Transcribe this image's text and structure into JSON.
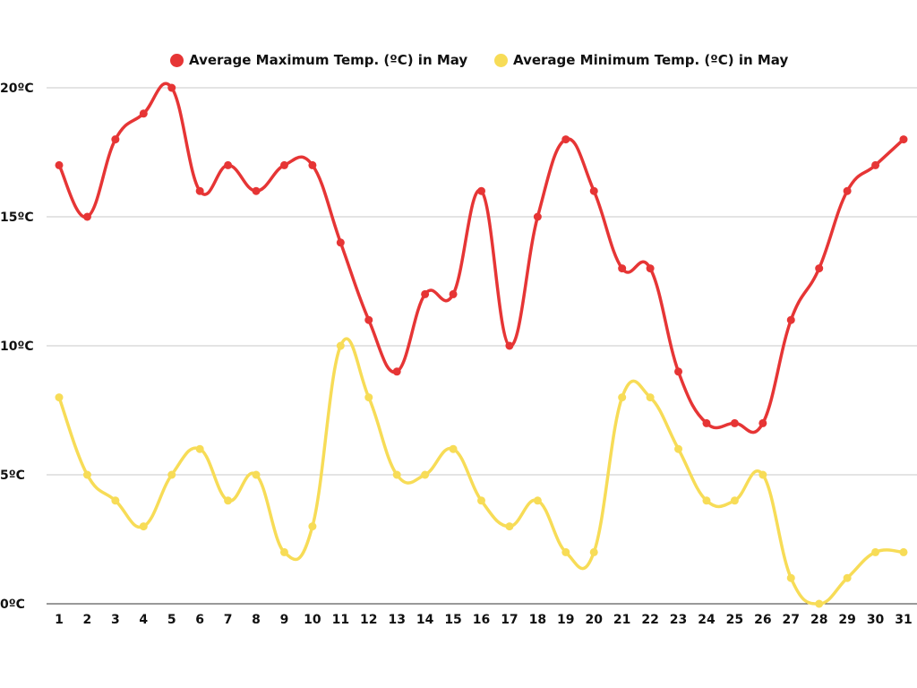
{
  "chart_data": {
    "type": "line",
    "title": "",
    "xlabel": "",
    "ylabel": "",
    "x": [
      1,
      2,
      3,
      4,
      5,
      6,
      7,
      8,
      9,
      10,
      11,
      12,
      13,
      14,
      15,
      16,
      17,
      18,
      19,
      20,
      21,
      22,
      23,
      24,
      25,
      26,
      27,
      28,
      29,
      30,
      31
    ],
    "ylim": [
      0,
      20
    ],
    "y_ticks": [
      "0ºC",
      "5ºC",
      "10ºC",
      "15ºC",
      "20ºC"
    ],
    "y_tick_values": [
      0,
      5,
      10,
      15,
      20
    ],
    "grid": true,
    "legend_position": "top-center",
    "series": [
      {
        "name": "Average Maximum Temp. (ºC) in May",
        "color": "#e63535",
        "values": [
          17,
          15,
          18,
          19,
          20,
          16,
          17,
          16,
          17,
          17,
          14,
          11,
          9,
          12,
          12,
          16,
          10,
          15,
          18,
          16,
          13,
          13,
          9,
          7,
          7,
          7,
          11,
          13,
          16,
          17,
          18
        ]
      },
      {
        "name": "Average Minimum Temp. (ºC) in May",
        "color": "#f7dc57",
        "values": [
          8,
          5,
          4,
          3,
          5,
          6,
          4,
          5,
          2,
          3,
          10,
          8,
          5,
          5,
          6,
          4,
          3,
          4,
          2,
          2,
          8,
          8,
          6,
          4,
          4,
          5,
          1,
          0,
          1,
          2,
          2
        ]
      }
    ]
  }
}
